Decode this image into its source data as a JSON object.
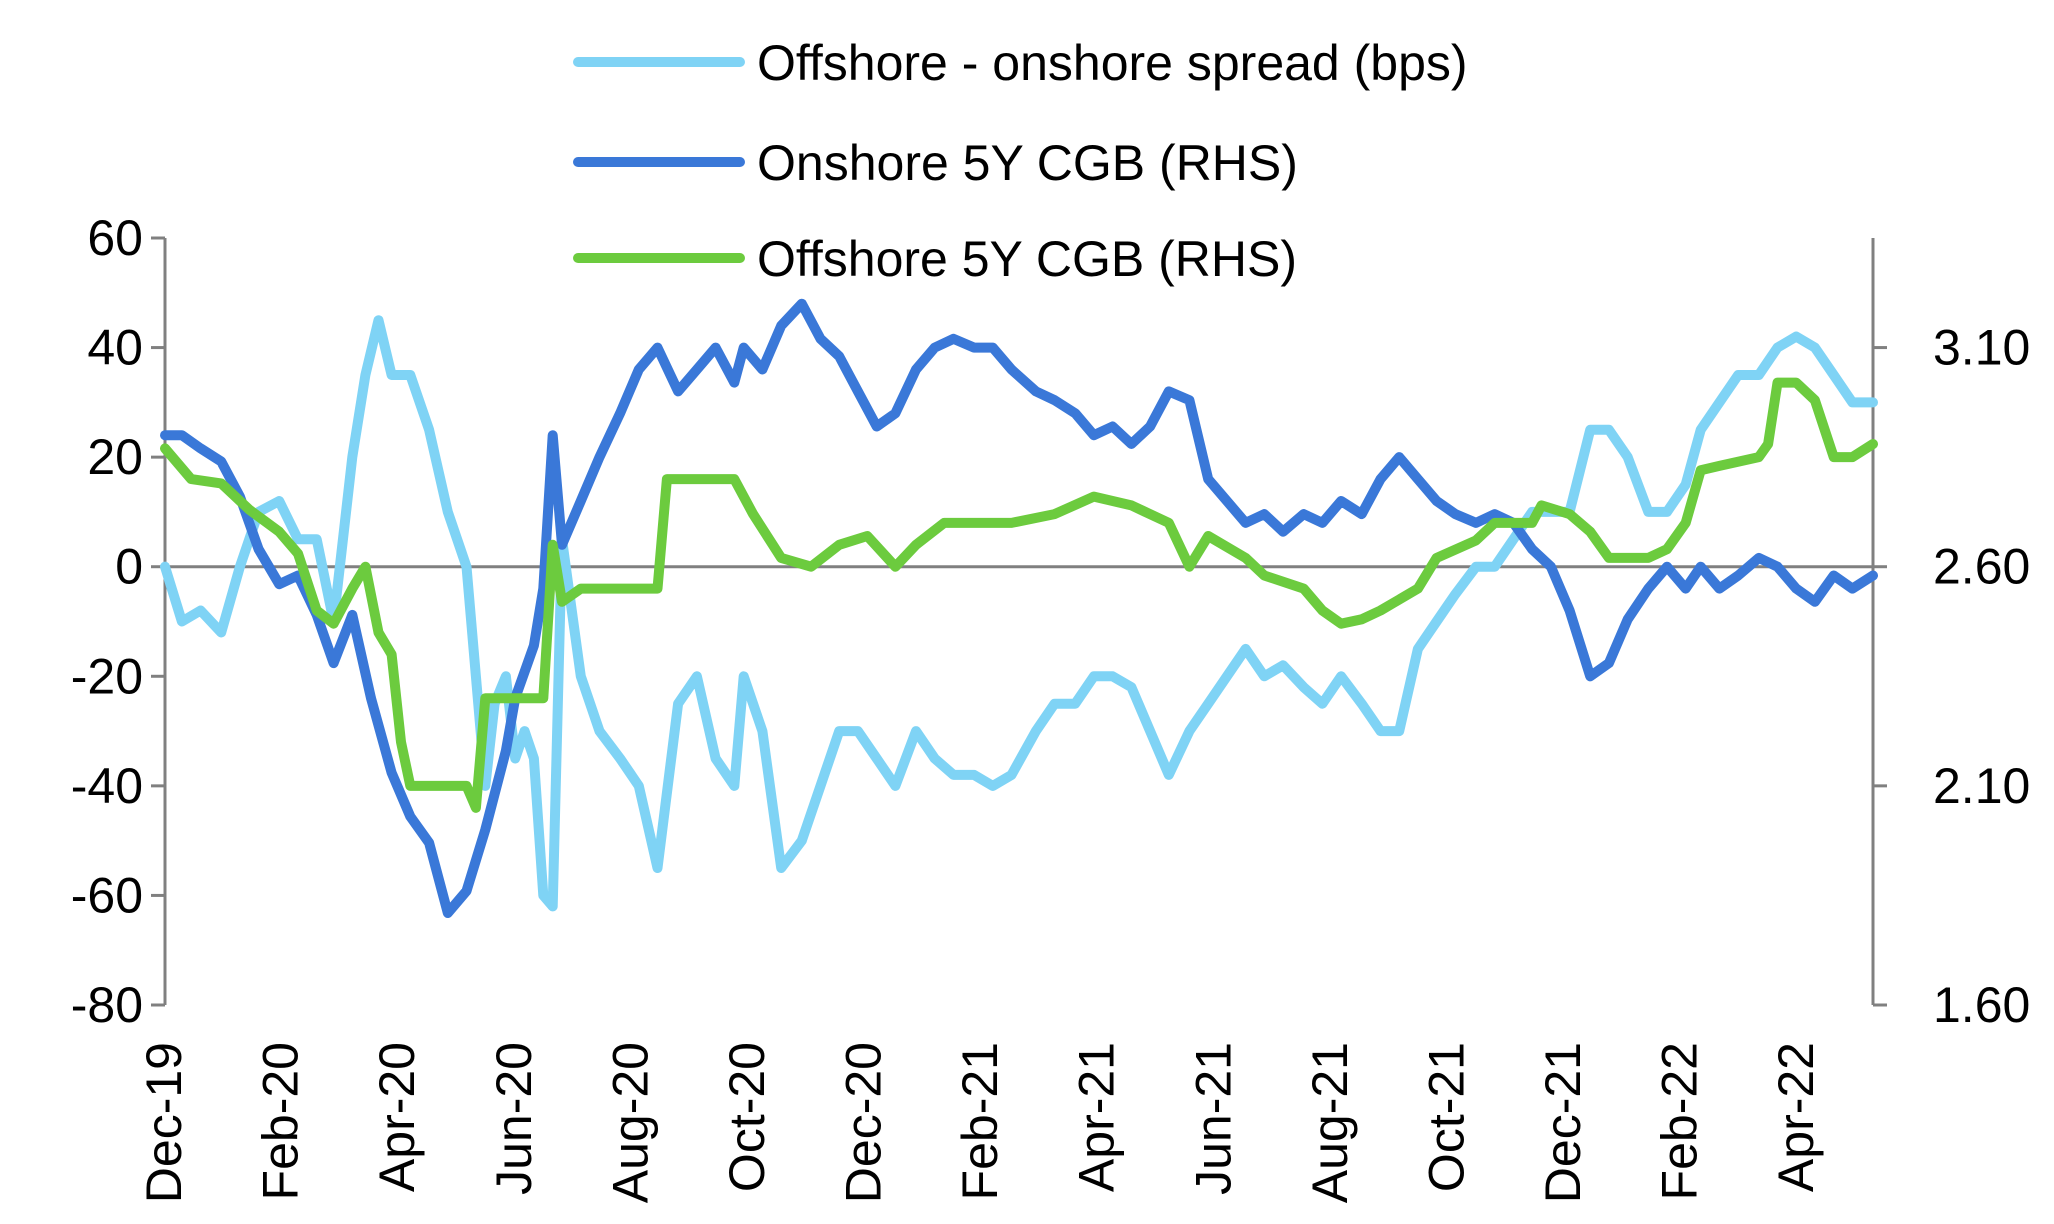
{
  "chart_data": {
    "type": "line",
    "title": "",
    "xlabel": "",
    "ylabel": "",
    "x_ticks": [
      "Dec-19",
      "Feb-20",
      "Apr-20",
      "Jun-20",
      "Aug-20",
      "Oct-20",
      "Dec-20",
      "Feb-21",
      "Apr-21",
      "Jun-21",
      "Aug-21",
      "Oct-21",
      "Dec-21",
      "Feb-22",
      "Apr-22"
    ],
    "x_range": [
      "2019-12-01",
      "2022-05-31"
    ],
    "y_left": {
      "min": -80,
      "max": 60,
      "ticks": [
        "-80",
        "-60",
        "-40",
        "-20",
        "0",
        "20",
        "40",
        "60"
      ]
    },
    "y_right": {
      "min": 1.6,
      "max": 3.35,
      "ticks": [
        "1.60",
        "2.10",
        "2.60",
        "3.10"
      ]
    },
    "grid": false,
    "legend_position": "top-center",
    "series": [
      {
        "name": "Offshore - onshore spread (bps)",
        "axis": "left",
        "color": "#7FD3F5",
        "points": [
          [
            "2019-12-01",
            0
          ],
          [
            "2019-12-10",
            -10
          ],
          [
            "2019-12-20",
            -8
          ],
          [
            "2019-12-31",
            -12
          ],
          [
            "2020-01-10",
            0
          ],
          [
            "2020-01-20",
            10
          ],
          [
            "2020-01-31",
            12
          ],
          [
            "2020-02-10",
            5
          ],
          [
            "2020-02-20",
            5
          ],
          [
            "2020-02-29",
            -10
          ],
          [
            "2020-03-10",
            20
          ],
          [
            "2020-03-17",
            35
          ],
          [
            "2020-03-24",
            45
          ],
          [
            "2020-03-31",
            35
          ],
          [
            "2020-04-10",
            35
          ],
          [
            "2020-04-20",
            25
          ],
          [
            "2020-04-30",
            10
          ],
          [
            "2020-05-10",
            0
          ],
          [
            "2020-05-15",
            -20
          ],
          [
            "2020-05-20",
            -40
          ],
          [
            "2020-05-25",
            -25
          ],
          [
            "2020-05-31",
            -20
          ],
          [
            "2020-06-05",
            -35
          ],
          [
            "2020-06-10",
            -30
          ],
          [
            "2020-06-15",
            -35
          ],
          [
            "2020-06-20",
            -60
          ],
          [
            "2020-06-25",
            -62
          ],
          [
            "2020-06-30",
            5
          ],
          [
            "2020-07-10",
            -20
          ],
          [
            "2020-07-20",
            -30
          ],
          [
            "2020-07-31",
            -35
          ],
          [
            "2020-08-10",
            -40
          ],
          [
            "2020-08-20",
            -55
          ],
          [
            "2020-08-31",
            -25
          ],
          [
            "2020-09-10",
            -20
          ],
          [
            "2020-09-20",
            -35
          ],
          [
            "2020-09-30",
            -40
          ],
          [
            "2020-10-05",
            -20
          ],
          [
            "2020-10-15",
            -30
          ],
          [
            "2020-10-25",
            -55
          ],
          [
            "2020-11-05",
            -50
          ],
          [
            "2020-11-15",
            -40
          ],
          [
            "2020-11-25",
            -30
          ],
          [
            "2020-12-05",
            -30
          ],
          [
            "2020-12-15",
            -35
          ],
          [
            "2020-12-25",
            -40
          ],
          [
            "2021-01-05",
            -30
          ],
          [
            "2021-01-15",
            -35
          ],
          [
            "2021-01-25",
            -38
          ],
          [
            "2021-02-05",
            -38
          ],
          [
            "2021-02-15",
            -40
          ],
          [
            "2021-02-25",
            -38
          ],
          [
            "2021-03-10",
            -30
          ],
          [
            "2021-03-20",
            -25
          ],
          [
            "2021-03-31",
            -25
          ],
          [
            "2021-04-10",
            -20
          ],
          [
            "2021-04-20",
            -20
          ],
          [
            "2021-04-30",
            -22
          ],
          [
            "2021-05-10",
            -30
          ],
          [
            "2021-05-20",
            -38
          ],
          [
            "2021-05-31",
            -30
          ],
          [
            "2021-06-10",
            -25
          ],
          [
            "2021-06-20",
            -20
          ],
          [
            "2021-06-30",
            -15
          ],
          [
            "2021-07-10",
            -20
          ],
          [
            "2021-07-20",
            -18
          ],
          [
            "2021-07-31",
            -22
          ],
          [
            "2021-08-10",
            -25
          ],
          [
            "2021-08-20",
            -20
          ],
          [
            "2021-08-31",
            -25
          ],
          [
            "2021-09-10",
            -30
          ],
          [
            "2021-09-20",
            -30
          ],
          [
            "2021-09-30",
            -15
          ],
          [
            "2021-10-10",
            -10
          ],
          [
            "2021-10-20",
            -5
          ],
          [
            "2021-10-31",
            0
          ],
          [
            "2021-11-10",
            0
          ],
          [
            "2021-11-20",
            5
          ],
          [
            "2021-11-30",
            10
          ],
          [
            "2021-12-10",
            10
          ],
          [
            "2021-12-20",
            10
          ],
          [
            "2021-12-31",
            25
          ],
          [
            "2022-01-10",
            25
          ],
          [
            "2022-01-20",
            20
          ],
          [
            "2022-01-31",
            10
          ],
          [
            "2022-02-10",
            10
          ],
          [
            "2022-02-20",
            15
          ],
          [
            "2022-02-28",
            25
          ],
          [
            "2022-03-10",
            30
          ],
          [
            "2022-03-20",
            35
          ],
          [
            "2022-03-31",
            35
          ],
          [
            "2022-04-10",
            40
          ],
          [
            "2022-04-20",
            42
          ],
          [
            "2022-04-30",
            40
          ],
          [
            "2022-05-10",
            35
          ],
          [
            "2022-05-20",
            30
          ],
          [
            "2022-05-31",
            30
          ]
        ]
      },
      {
        "name": "Onshore 5Y CGB (RHS)",
        "axis": "right",
        "color": "#3A78D8",
        "points": [
          [
            "2019-12-01",
            2.9
          ],
          [
            "2019-12-10",
            2.9
          ],
          [
            "2019-12-20",
            2.87
          ],
          [
            "2019-12-31",
            2.84
          ],
          [
            "2020-01-10",
            2.76
          ],
          [
            "2020-01-20",
            2.64
          ],
          [
            "2020-01-31",
            2.56
          ],
          [
            "2020-02-10",
            2.58
          ],
          [
            "2020-02-20",
            2.49
          ],
          [
            "2020-02-29",
            2.38
          ],
          [
            "2020-03-10",
            2.49
          ],
          [
            "2020-03-20",
            2.3
          ],
          [
            "2020-03-31",
            2.13
          ],
          [
            "2020-04-10",
            2.03
          ],
          [
            "2020-04-20",
            1.97
          ],
          [
            "2020-04-30",
            1.81
          ],
          [
            "2020-05-10",
            1.86
          ],
          [
            "2020-05-20",
            2.0
          ],
          [
            "2020-05-31",
            2.18
          ],
          [
            "2020-06-05",
            2.3
          ],
          [
            "2020-06-15",
            2.42
          ],
          [
            "2020-06-20",
            2.55
          ],
          [
            "2020-06-25",
            2.9
          ],
          [
            "2020-06-30",
            2.65
          ],
          [
            "2020-07-10",
            2.75
          ],
          [
            "2020-07-20",
            2.85
          ],
          [
            "2020-07-31",
            2.95
          ],
          [
            "2020-08-10",
            3.05
          ],
          [
            "2020-08-20",
            3.1
          ],
          [
            "2020-08-31",
            3.0
          ],
          [
            "2020-09-10",
            3.05
          ],
          [
            "2020-09-20",
            3.1
          ],
          [
            "2020-09-30",
            3.02
          ],
          [
            "2020-10-05",
            3.1
          ],
          [
            "2020-10-15",
            3.05
          ],
          [
            "2020-10-25",
            3.15
          ],
          [
            "2020-11-05",
            3.2
          ],
          [
            "2020-11-15",
            3.12
          ],
          [
            "2020-11-25",
            3.08
          ],
          [
            "2020-12-05",
            3.0
          ],
          [
            "2020-12-15",
            2.92
          ],
          [
            "2020-12-25",
            2.95
          ],
          [
            "2021-01-05",
            3.05
          ],
          [
            "2021-01-15",
            3.1
          ],
          [
            "2021-01-25",
            3.12
          ],
          [
            "2021-02-05",
            3.1
          ],
          [
            "2021-02-15",
            3.1
          ],
          [
            "2021-02-25",
            3.05
          ],
          [
            "2021-03-10",
            3.0
          ],
          [
            "2021-03-20",
            2.98
          ],
          [
            "2021-03-31",
            2.95
          ],
          [
            "2021-04-10",
            2.9
          ],
          [
            "2021-04-20",
            2.92
          ],
          [
            "2021-04-30",
            2.88
          ],
          [
            "2021-05-10",
            2.92
          ],
          [
            "2021-05-20",
            3.0
          ],
          [
            "2021-05-31",
            2.98
          ],
          [
            "2021-06-10",
            2.8
          ],
          [
            "2021-06-20",
            2.75
          ],
          [
            "2021-06-30",
            2.7
          ],
          [
            "2021-07-10",
            2.72
          ],
          [
            "2021-07-20",
            2.68
          ],
          [
            "2021-07-31",
            2.72
          ],
          [
            "2021-08-10",
            2.7
          ],
          [
            "2021-08-20",
            2.75
          ],
          [
            "2021-08-31",
            2.72
          ],
          [
            "2021-09-10",
            2.8
          ],
          [
            "2021-09-20",
            2.85
          ],
          [
            "2021-09-30",
            2.8
          ],
          [
            "2021-10-10",
            2.75
          ],
          [
            "2021-10-20",
            2.72
          ],
          [
            "2021-10-31",
            2.7
          ],
          [
            "2021-11-10",
            2.72
          ],
          [
            "2021-11-20",
            2.7
          ],
          [
            "2021-11-30",
            2.64
          ],
          [
            "2021-12-10",
            2.6
          ],
          [
            "2021-12-20",
            2.5
          ],
          [
            "2021-12-31",
            2.35
          ],
          [
            "2022-01-10",
            2.38
          ],
          [
            "2022-01-20",
            2.48
          ],
          [
            "2022-01-31",
            2.55
          ],
          [
            "2022-02-10",
            2.6
          ],
          [
            "2022-02-20",
            2.55
          ],
          [
            "2022-02-28",
            2.6
          ],
          [
            "2022-03-10",
            2.55
          ],
          [
            "2022-03-20",
            2.58
          ],
          [
            "2022-03-31",
            2.62
          ],
          [
            "2022-04-10",
            2.6
          ],
          [
            "2022-04-20",
            2.55
          ],
          [
            "2022-04-30",
            2.52
          ],
          [
            "2022-05-10",
            2.58
          ],
          [
            "2022-05-20",
            2.55
          ],
          [
            "2022-05-31",
            2.58
          ]
        ]
      },
      {
        "name": "Offshore 5Y CGB (RHS)",
        "axis": "right",
        "color": "#6CCB3E",
        "points": [
          [
            "2019-12-01",
            2.87
          ],
          [
            "2019-12-15",
            2.8
          ],
          [
            "2019-12-31",
            2.79
          ],
          [
            "2020-01-15",
            2.73
          ],
          [
            "2020-01-31",
            2.68
          ],
          [
            "2020-02-10",
            2.63
          ],
          [
            "2020-02-20",
            2.5
          ],
          [
            "2020-02-29",
            2.47
          ],
          [
            "2020-03-10",
            2.55
          ],
          [
            "2020-03-17",
            2.6
          ],
          [
            "2020-03-24",
            2.45
          ],
          [
            "2020-03-31",
            2.4
          ],
          [
            "2020-04-05",
            2.2
          ],
          [
            "2020-04-10",
            2.1
          ],
          [
            "2020-04-30",
            2.1
          ],
          [
            "2020-05-10",
            2.1
          ],
          [
            "2020-05-15",
            2.05
          ],
          [
            "2020-05-20",
            2.3
          ],
          [
            "2020-05-31",
            2.3
          ],
          [
            "2020-06-10",
            2.3
          ],
          [
            "2020-06-20",
            2.3
          ],
          [
            "2020-06-25",
            2.65
          ],
          [
            "2020-06-30",
            2.52
          ],
          [
            "2020-07-10",
            2.55
          ],
          [
            "2020-07-31",
            2.55
          ],
          [
            "2020-08-10",
            2.55
          ],
          [
            "2020-08-20",
            2.55
          ],
          [
            "2020-08-25",
            2.8
          ],
          [
            "2020-09-10",
            2.8
          ],
          [
            "2020-09-30",
            2.8
          ],
          [
            "2020-10-10",
            2.72
          ],
          [
            "2020-10-25",
            2.62
          ],
          [
            "2020-11-10",
            2.6
          ],
          [
            "2020-11-25",
            2.65
          ],
          [
            "2020-12-10",
            2.67
          ],
          [
            "2020-12-25",
            2.6
          ],
          [
            "2021-01-05",
            2.65
          ],
          [
            "2021-01-20",
            2.7
          ],
          [
            "2021-02-05",
            2.7
          ],
          [
            "2021-02-25",
            2.7
          ],
          [
            "2021-03-20",
            2.72
          ],
          [
            "2021-04-10",
            2.76
          ],
          [
            "2021-04-30",
            2.74
          ],
          [
            "2021-05-20",
            2.7
          ],
          [
            "2021-05-31",
            2.6
          ],
          [
            "2021-06-10",
            2.67
          ],
          [
            "2021-06-30",
            2.62
          ],
          [
            "2021-07-10",
            2.58
          ],
          [
            "2021-07-31",
            2.55
          ],
          [
            "2021-08-10",
            2.5
          ],
          [
            "2021-08-20",
            2.47
          ],
          [
            "2021-08-31",
            2.48
          ],
          [
            "2021-09-10",
            2.5
          ],
          [
            "2021-09-30",
            2.55
          ],
          [
            "2021-10-10",
            2.62
          ],
          [
            "2021-10-31",
            2.66
          ],
          [
            "2021-11-10",
            2.7
          ],
          [
            "2021-11-30",
            2.7
          ],
          [
            "2021-12-05",
            2.74
          ],
          [
            "2021-12-20",
            2.72
          ],
          [
            "2021-12-31",
            2.68
          ],
          [
            "2022-01-10",
            2.62
          ],
          [
            "2022-01-31",
            2.62
          ],
          [
            "2022-02-10",
            2.64
          ],
          [
            "2022-02-20",
            2.7
          ],
          [
            "2022-02-28",
            2.82
          ],
          [
            "2022-03-10",
            2.83
          ],
          [
            "2022-03-31",
            2.85
          ],
          [
            "2022-04-05",
            2.88
          ],
          [
            "2022-04-10",
            3.02
          ],
          [
            "2022-04-20",
            3.02
          ],
          [
            "2022-04-30",
            2.98
          ],
          [
            "2022-05-10",
            2.85
          ],
          [
            "2022-05-20",
            2.85
          ],
          [
            "2022-05-31",
            2.88
          ]
        ]
      }
    ]
  }
}
